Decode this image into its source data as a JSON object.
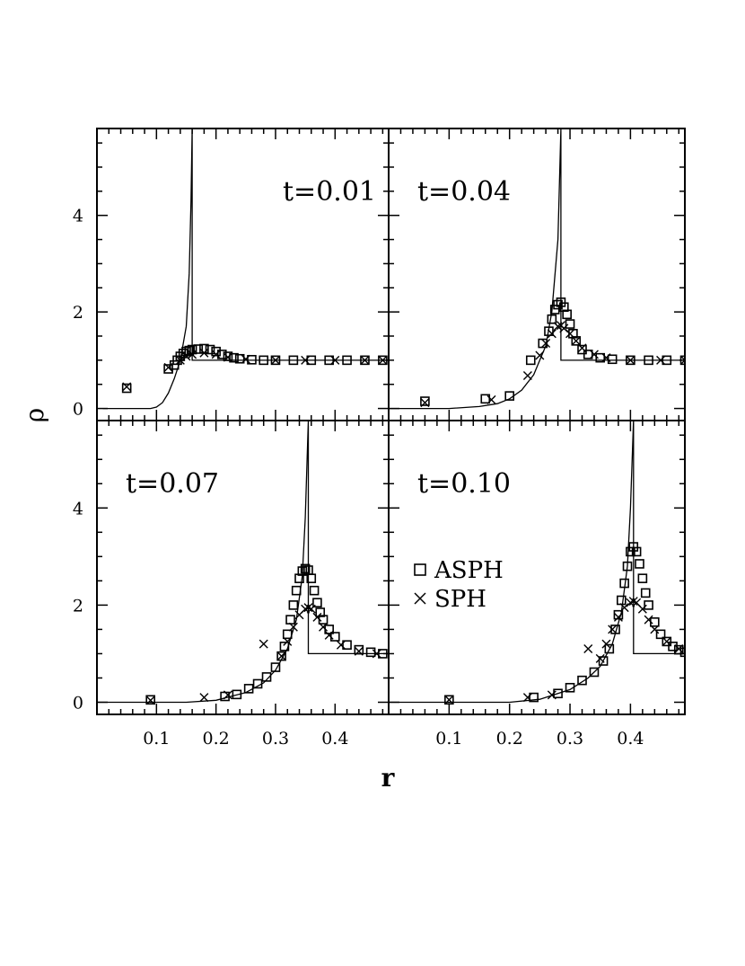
{
  "chart_data": {
    "type": "scatter",
    "layout": "2x2 panels sharing axes",
    "xlabel": "r",
    "ylabel": "ρ",
    "xlim": [
      0,
      0.49
    ],
    "ylim": [
      -0.25,
      5.8
    ],
    "x_ticks": [
      0.1,
      0.2,
      0.3,
      0.4
    ],
    "x_tick_labels": [
      "0.1",
      "0.2",
      "0.3",
      "0.4"
    ],
    "y_ticks": [
      0,
      2,
      4
    ],
    "y_tick_labels": [
      "0",
      "2",
      "4"
    ],
    "legend": {
      "entries": [
        {
          "label": "ASPH",
          "marker": "square"
        },
        {
          "label": "SPH",
          "marker": "cross"
        }
      ],
      "placement": "inside lower-right panel, left of peak"
    },
    "panels": [
      {
        "label": "t=0.01",
        "position": "top-left",
        "analytic": {
          "shock_r": 0.16,
          "peak": 5.8,
          "x": [
            0.01,
            0.09,
            0.1,
            0.11,
            0.12,
            0.13,
            0.14,
            0.15,
            0.155,
            0.158,
            0.16,
            0.16,
            0.49
          ],
          "y": [
            0.0,
            0.0,
            0.03,
            0.12,
            0.32,
            0.62,
            1.0,
            1.7,
            2.8,
            4.3,
            5.8,
            1.0,
            1.0
          ]
        },
        "asph": {
          "x": [
            0.05,
            0.12,
            0.13,
            0.135,
            0.14,
            0.145,
            0.15,
            0.155,
            0.16,
            0.17,
            0.18,
            0.19,
            0.2,
            0.21,
            0.22,
            0.23,
            0.24,
            0.26,
            0.28,
            0.3,
            0.33,
            0.36,
            0.39,
            0.42,
            0.45,
            0.48
          ],
          "y": [
            0.42,
            0.82,
            0.9,
            1.0,
            1.08,
            1.14,
            1.18,
            1.2,
            1.22,
            1.23,
            1.24,
            1.22,
            1.18,
            1.12,
            1.08,
            1.05,
            1.03,
            1.01,
            1.0,
            1.0,
            1.0,
            1.0,
            1.0,
            1.0,
            1.0,
            1.0
          ]
        },
        "sph": {
          "x": [
            0.05,
            0.12,
            0.14,
            0.15,
            0.16,
            0.18,
            0.2,
            0.22,
            0.25,
            0.3,
            0.35,
            0.4,
            0.45,
            0.48
          ],
          "y": [
            0.45,
            0.85,
            1.0,
            1.08,
            1.12,
            1.15,
            1.12,
            1.06,
            1.02,
            1.0,
            1.0,
            1.0,
            1.0,
            1.0
          ]
        }
      },
      {
        "label": "t=0.04",
        "position": "top-right",
        "analytic": {
          "shock_r": 0.285,
          "peak": 5.8,
          "x": [
            0.0,
            0.1,
            0.15,
            0.18,
            0.2,
            0.22,
            0.24,
            0.26,
            0.27,
            0.28,
            0.285,
            0.285,
            0.49
          ],
          "y": [
            0.0,
            0.0,
            0.04,
            0.1,
            0.2,
            0.38,
            0.7,
            1.3,
            2.0,
            3.5,
            5.8,
            1.0,
            1.0
          ]
        },
        "asph": {
          "x": [
            0.06,
            0.16,
            0.2,
            0.235,
            0.255,
            0.265,
            0.27,
            0.275,
            0.28,
            0.285,
            0.29,
            0.295,
            0.3,
            0.305,
            0.31,
            0.32,
            0.33,
            0.35,
            0.37,
            0.4,
            0.43,
            0.46,
            0.49
          ],
          "y": [
            0.15,
            0.2,
            0.26,
            1.0,
            1.35,
            1.6,
            1.85,
            2.05,
            2.15,
            2.2,
            2.1,
            1.95,
            1.75,
            1.55,
            1.4,
            1.22,
            1.12,
            1.05,
            1.02,
            1.0,
            1.0,
            1.0,
            1.0
          ]
        },
        "sph": {
          "x": [
            0.06,
            0.17,
            0.23,
            0.25,
            0.26,
            0.27,
            0.28,
            0.285,
            0.29,
            0.3,
            0.31,
            0.32,
            0.34,
            0.36,
            0.4,
            0.45,
            0.49
          ],
          "y": [
            0.12,
            0.18,
            0.68,
            1.1,
            1.35,
            1.55,
            1.7,
            1.72,
            1.66,
            1.55,
            1.4,
            1.25,
            1.12,
            1.05,
            1.0,
            1.0,
            1.0
          ]
        }
      },
      {
        "label": "t=0.07",
        "position": "bottom-left",
        "analytic": {
          "shock_r": 0.355,
          "peak": 5.8,
          "x": [
            0.0,
            0.15,
            0.2,
            0.25,
            0.28,
            0.3,
            0.32,
            0.335,
            0.345,
            0.35,
            0.355,
            0.355,
            0.49
          ],
          "y": [
            0.0,
            0.0,
            0.04,
            0.2,
            0.4,
            0.66,
            1.1,
            1.7,
            2.6,
            3.8,
            5.8,
            1.0,
            1.0
          ]
        },
        "asph": {
          "x": [
            0.09,
            0.215,
            0.235,
            0.255,
            0.27,
            0.285,
            0.3,
            0.31,
            0.315,
            0.32,
            0.325,
            0.33,
            0.335,
            0.34,
            0.345,
            0.35,
            0.355,
            0.36,
            0.365,
            0.37,
            0.375,
            0.38,
            0.39,
            0.4,
            0.42,
            0.44,
            0.46,
            0.48
          ],
          "y": [
            0.05,
            0.12,
            0.16,
            0.28,
            0.38,
            0.52,
            0.72,
            0.95,
            1.15,
            1.4,
            1.7,
            2.0,
            2.3,
            2.55,
            2.7,
            2.75,
            2.72,
            2.55,
            2.3,
            2.05,
            1.85,
            1.7,
            1.5,
            1.35,
            1.18,
            1.08,
            1.03,
            1.0
          ]
        },
        "sph": {
          "x": [
            0.09,
            0.18,
            0.22,
            0.28,
            0.31,
            0.32,
            0.33,
            0.34,
            0.35,
            0.355,
            0.36,
            0.37,
            0.38,
            0.39,
            0.41,
            0.44,
            0.47
          ],
          "y": [
            0.04,
            0.1,
            0.15,
            1.2,
            0.95,
            1.25,
            1.55,
            1.8,
            1.92,
            1.95,
            1.92,
            1.75,
            1.55,
            1.38,
            1.18,
            1.05,
            1.0
          ]
        }
      },
      {
        "label": "t=0.10",
        "position": "bottom-right",
        "analytic": {
          "shock_r": 0.405,
          "peak": 5.8,
          "x": [
            0.0,
            0.2,
            0.25,
            0.3,
            0.33,
            0.35,
            0.37,
            0.385,
            0.395,
            0.4,
            0.405,
            0.405,
            0.49
          ],
          "y": [
            0.0,
            0.0,
            0.06,
            0.26,
            0.5,
            0.74,
            1.2,
            1.85,
            2.8,
            4.0,
            5.8,
            1.0,
            1.0
          ]
        },
        "asph": {
          "x": [
            0.1,
            0.24,
            0.28,
            0.3,
            0.32,
            0.34,
            0.355,
            0.365,
            0.375,
            0.38,
            0.385,
            0.39,
            0.395,
            0.4,
            0.405,
            0.41,
            0.415,
            0.42,
            0.425,
            0.43,
            0.44,
            0.45,
            0.46,
            0.47,
            0.48,
            0.49
          ],
          "y": [
            0.05,
            0.1,
            0.18,
            0.3,
            0.45,
            0.62,
            0.85,
            1.1,
            1.5,
            1.8,
            2.1,
            2.45,
            2.8,
            3.1,
            3.2,
            3.1,
            2.85,
            2.55,
            2.25,
            2.0,
            1.65,
            1.4,
            1.25,
            1.15,
            1.08,
            1.03
          ]
        },
        "sph": {
          "x": [
            0.1,
            0.23,
            0.27,
            0.33,
            0.35,
            0.36,
            0.37,
            0.38,
            0.39,
            0.4,
            0.405,
            0.41,
            0.42,
            0.43,
            0.44,
            0.46,
            0.48
          ],
          "y": [
            0.05,
            0.1,
            0.15,
            1.1,
            0.9,
            1.2,
            1.5,
            1.75,
            1.95,
            2.05,
            2.08,
            2.05,
            1.92,
            1.7,
            1.5,
            1.25,
            1.1
          ]
        }
      }
    ]
  }
}
